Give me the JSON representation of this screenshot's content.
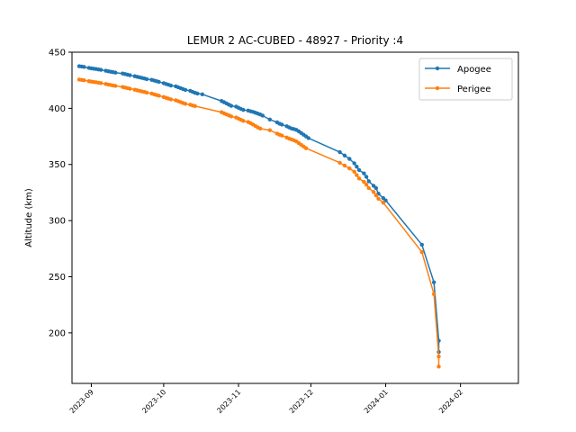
{
  "chart_data": {
    "type": "line",
    "title": "LEMUR 2 AC-CUBED - 48927 - Priority :4",
    "xlabel": "",
    "ylabel": "Altitude (km)",
    "xlim": [
      "2023-08-24",
      "2024-02-25"
    ],
    "ylim": [
      155,
      450
    ],
    "x_ticks": [
      "2023-09",
      "2023-10",
      "2023-11",
      "2023-12",
      "2024-01",
      "2024-02"
    ],
    "y_ticks": [
      200,
      250,
      300,
      350,
      400,
      450
    ],
    "grid": false,
    "legend_position": "top-right",
    "series": [
      {
        "name": "Apogee",
        "color": "#1f77b4",
        "points": [
          [
            "2023-08-27",
            437.5
          ],
          [
            "2023-08-28",
            437.2
          ],
          [
            "2023-08-29",
            436.9
          ],
          [
            "2023-08-31",
            436.0
          ],
          [
            "2023-09-01",
            435.6
          ],
          [
            "2023-09-02",
            435.3
          ],
          [
            "2023-09-03",
            435.0
          ],
          [
            "2023-09-04",
            434.6
          ],
          [
            "2023-09-05",
            434.3
          ],
          [
            "2023-09-07",
            433.5
          ],
          [
            "2023-09-08",
            433.0
          ],
          [
            "2023-09-09",
            432.6
          ],
          [
            "2023-09-10",
            432.2
          ],
          [
            "2023-09-11",
            431.8
          ],
          [
            "2023-09-14",
            431.0
          ],
          [
            "2023-09-15",
            430.5
          ],
          [
            "2023-09-16",
            430.0
          ],
          [
            "2023-09-17",
            429.5
          ],
          [
            "2023-09-19",
            428.6
          ],
          [
            "2023-09-20",
            428.1
          ],
          [
            "2023-09-21",
            427.6
          ],
          [
            "2023-09-22",
            427.1
          ],
          [
            "2023-09-23",
            426.6
          ],
          [
            "2023-09-24",
            426.0
          ],
          [
            "2023-09-26",
            425.4
          ],
          [
            "2023-09-27",
            424.8
          ],
          [
            "2023-09-28",
            424.2
          ],
          [
            "2023-09-29",
            423.6
          ],
          [
            "2023-10-01",
            422.4
          ],
          [
            "2023-10-02",
            421.7
          ],
          [
            "2023-10-03",
            421.0
          ],
          [
            "2023-10-04",
            420.3
          ],
          [
            "2023-10-06",
            419.6
          ],
          [
            "2023-10-07",
            418.8
          ],
          [
            "2023-10-08",
            418.0
          ],
          [
            "2023-10-09",
            417.2
          ],
          [
            "2023-10-10",
            416.4
          ],
          [
            "2023-10-12",
            415.6
          ],
          [
            "2023-10-13",
            414.7
          ],
          [
            "2023-10-14",
            413.8
          ],
          [
            "2023-10-15",
            413.2
          ],
          [
            "2023-10-17",
            412.5
          ],
          [
            "2023-10-25",
            406.5
          ],
          [
            "2023-10-26",
            405.5
          ],
          [
            "2023-10-27",
            404.4
          ],
          [
            "2023-10-28",
            403.3
          ],
          [
            "2023-10-29",
            402.2
          ],
          [
            "2023-10-31",
            401.5
          ],
          [
            "2023-11-01",
            400.5
          ],
          [
            "2023-11-02",
            399.5
          ],
          [
            "2023-11-03",
            398.6
          ],
          [
            "2023-11-05",
            398.0
          ],
          [
            "2023-11-06",
            397.4
          ],
          [
            "2023-11-07",
            396.8
          ],
          [
            "2023-11-08",
            396.1
          ],
          [
            "2023-11-09",
            395.3
          ],
          [
            "2023-11-10",
            394.5
          ],
          [
            "2023-11-11",
            393.5
          ],
          [
            "2023-11-14",
            390.0
          ],
          [
            "2023-11-17",
            387.5
          ],
          [
            "2023-11-18",
            386.3
          ],
          [
            "2023-11-19",
            385.5
          ],
          [
            "2023-11-21",
            384.0
          ],
          [
            "2023-11-22",
            383.0
          ],
          [
            "2023-11-23",
            382.0
          ],
          [
            "2023-11-24",
            381.5
          ],
          [
            "2023-11-25",
            380.8
          ],
          [
            "2023-11-26",
            379.5
          ],
          [
            "2023-11-27",
            378.0
          ],
          [
            "2023-11-28",
            376.5
          ],
          [
            "2023-11-29",
            375.0
          ],
          [
            "2023-11-30",
            373.5
          ],
          [
            "2023-12-13",
            361.0
          ],
          [
            "2023-12-15",
            358.0
          ],
          [
            "2023-12-17",
            355.0
          ],
          [
            "2023-12-19",
            351.0
          ],
          [
            "2023-12-20",
            348.0
          ],
          [
            "2023-12-21",
            345.0
          ],
          [
            "2023-12-23",
            342.0
          ],
          [
            "2023-12-24",
            339.0
          ],
          [
            "2023-12-25",
            335.0
          ],
          [
            "2023-12-27",
            331.0
          ],
          [
            "2023-12-28",
            329.0
          ],
          [
            "2023-12-29",
            324.0
          ],
          [
            "2023-12-31",
            320.0
          ],
          [
            "2024-01-01",
            318.0
          ],
          [
            "2024-01-16",
            278.5
          ],
          [
            "2024-01-21",
            245.0
          ],
          [
            "2024-01-23",
            193.0
          ],
          [
            "2024-01-23",
            183.0
          ]
        ]
      },
      {
        "name": "Perigee",
        "color": "#ff7f0e",
        "points": [
          [
            "2023-08-27",
            425.6
          ],
          [
            "2023-08-28",
            425.3
          ],
          [
            "2023-08-29",
            425.0
          ],
          [
            "2023-08-31",
            424.2
          ],
          [
            "2023-09-01",
            423.8
          ],
          [
            "2023-09-02",
            423.5
          ],
          [
            "2023-09-03",
            423.2
          ],
          [
            "2023-09-04",
            422.8
          ],
          [
            "2023-09-05",
            422.5
          ],
          [
            "2023-09-07",
            421.7
          ],
          [
            "2023-09-08",
            421.2
          ],
          [
            "2023-09-09",
            420.8
          ],
          [
            "2023-09-10",
            420.4
          ],
          [
            "2023-09-11",
            420.0
          ],
          [
            "2023-09-14",
            419.0
          ],
          [
            "2023-09-15",
            418.5
          ],
          [
            "2023-09-16",
            418.0
          ],
          [
            "2023-09-17",
            417.5
          ],
          [
            "2023-09-19",
            416.6
          ],
          [
            "2023-09-20",
            416.1
          ],
          [
            "2023-09-21",
            415.6
          ],
          [
            "2023-09-22",
            415.1
          ],
          [
            "2023-09-23",
            414.6
          ],
          [
            "2023-09-24",
            414.0
          ],
          [
            "2023-09-26",
            413.2
          ],
          [
            "2023-09-27",
            412.5
          ],
          [
            "2023-09-28",
            411.9
          ],
          [
            "2023-09-29",
            411.3
          ],
          [
            "2023-10-01",
            410.1
          ],
          [
            "2023-10-02",
            409.4
          ],
          [
            "2023-10-03",
            408.7
          ],
          [
            "2023-10-04",
            408.0
          ],
          [
            "2023-10-06",
            407.2
          ],
          [
            "2023-10-07",
            406.4
          ],
          [
            "2023-10-08",
            405.6
          ],
          [
            "2023-10-09",
            404.8
          ],
          [
            "2023-10-10",
            404.0
          ],
          [
            "2023-10-12",
            403.2
          ],
          [
            "2023-10-13",
            402.5
          ],
          [
            "2023-10-14",
            402.0
          ],
          [
            "2023-10-25",
            396.5
          ],
          [
            "2023-10-26",
            395.5
          ],
          [
            "2023-10-27",
            394.6
          ],
          [
            "2023-10-28",
            393.7
          ],
          [
            "2023-10-29",
            392.8
          ],
          [
            "2023-10-31",
            391.8
          ],
          [
            "2023-11-01",
            390.8
          ],
          [
            "2023-11-02",
            389.8
          ],
          [
            "2023-11-03",
            388.8
          ],
          [
            "2023-11-05",
            387.8
          ],
          [
            "2023-11-06",
            386.8
          ],
          [
            "2023-11-07",
            385.6
          ],
          [
            "2023-11-08",
            384.3
          ],
          [
            "2023-11-09",
            383.0
          ],
          [
            "2023-11-10",
            382.0
          ],
          [
            "2023-11-14",
            380.5
          ],
          [
            "2023-11-17",
            377.5
          ],
          [
            "2023-11-18",
            376.5
          ],
          [
            "2023-11-19",
            375.8
          ],
          [
            "2023-11-21",
            374.0
          ],
          [
            "2023-11-22",
            373.0
          ],
          [
            "2023-11-23",
            372.3
          ],
          [
            "2023-11-24",
            371.5
          ],
          [
            "2023-11-25",
            370.5
          ],
          [
            "2023-11-26",
            369.0
          ],
          [
            "2023-11-27",
            367.5
          ],
          [
            "2023-11-28",
            366.0
          ],
          [
            "2023-11-29",
            364.5
          ],
          [
            "2023-12-13",
            351.5
          ],
          [
            "2023-12-15",
            349.0
          ],
          [
            "2023-12-17",
            346.5
          ],
          [
            "2023-12-19",
            343.5
          ],
          [
            "2023-12-20",
            340.5
          ],
          [
            "2023-12-21",
            337.5
          ],
          [
            "2023-12-23",
            334.5
          ],
          [
            "2023-12-24",
            332.0
          ],
          [
            "2023-12-25",
            329.0
          ],
          [
            "2023-12-27",
            325.5
          ],
          [
            "2023-12-28",
            322.5
          ],
          [
            "2023-12-29",
            319.5
          ],
          [
            "2023-12-31",
            316.0
          ],
          [
            "2024-01-16",
            272.0
          ],
          [
            "2024-01-21",
            234.5
          ],
          [
            "2024-01-23",
            179.0
          ],
          [
            "2024-01-23",
            170.0
          ]
        ]
      }
    ]
  }
}
